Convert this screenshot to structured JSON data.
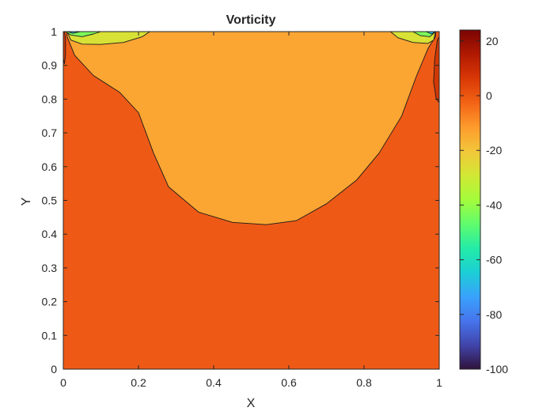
{
  "chart_data": {
    "type": "contour",
    "title": "Vorticity",
    "xlabel": "X",
    "ylabel": "Y",
    "xlim": [
      0,
      1
    ],
    "ylim": [
      0,
      1
    ],
    "x_ticks": [
      "0",
      "0.2",
      "0.4",
      "0.6",
      "0.8",
      "1"
    ],
    "x_tick_values": [
      0,
      0.2,
      0.4,
      0.6,
      0.8,
      1
    ],
    "y_ticks": [
      "0",
      "0.1",
      "0.2",
      "0.3",
      "0.4",
      "0.5",
      "0.6",
      "0.7",
      "0.8",
      "0.9",
      "1"
    ],
    "y_tick_values": [
      0,
      0.1,
      0.2,
      0.3,
      0.4,
      0.5,
      0.6,
      0.7,
      0.8,
      0.9,
      1
    ],
    "colorbar": {
      "range": [
        -100,
        24
      ],
      "ticks": [
        "20",
        "0",
        "-20",
        "-40",
        "-60",
        "-80",
        "-100"
      ],
      "tick_values": [
        20,
        0,
        -20,
        -40,
        -60,
        -80,
        -100
      ],
      "colormap": "turbo"
    },
    "grid": false,
    "regions": [
      {
        "level_range": [
          -10,
          0
        ],
        "color": "#ee5a16",
        "description_level": "background",
        "boundary": [
          [
            0,
            0
          ],
          [
            1,
            0
          ],
          [
            1,
            1
          ],
          [
            0,
            1
          ]
        ]
      },
      {
        "level_range": [
          -20,
          -10
        ],
        "color": "#fba532",
        "boundary": [
          [
            0.01,
            0.985
          ],
          [
            0.03,
            0.93
          ],
          [
            0.08,
            0.87
          ],
          [
            0.15,
            0.82
          ],
          [
            0.2,
            0.76
          ],
          [
            0.24,
            0.64
          ],
          [
            0.28,
            0.54
          ],
          [
            0.36,
            0.465
          ],
          [
            0.45,
            0.435
          ],
          [
            0.54,
            0.428
          ],
          [
            0.62,
            0.44
          ],
          [
            0.7,
            0.49
          ],
          [
            0.78,
            0.56
          ],
          [
            0.84,
            0.64
          ],
          [
            0.9,
            0.75
          ],
          [
            0.94,
            0.87
          ],
          [
            0.97,
            0.95
          ],
          [
            0.99,
            0.985
          ],
          [
            0.99,
            1
          ],
          [
            0.01,
            1
          ]
        ]
      },
      {
        "level_range": [
          -30,
          -20
        ],
        "color": "#d8e135",
        "boundary": [
          [
            0.01,
            1
          ],
          [
            0.02,
            0.975
          ],
          [
            0.05,
            0.963
          ],
          [
            0.1,
            0.962
          ],
          [
            0.16,
            0.968
          ],
          [
            0.21,
            0.985
          ],
          [
            0.23,
            1
          ]
        ]
      },
      {
        "level_range": [
          -30,
          -20
        ],
        "color": "#d8e135",
        "boundary": [
          [
            0.87,
            1
          ],
          [
            0.89,
            0.982
          ],
          [
            0.93,
            0.968
          ],
          [
            0.97,
            0.965
          ],
          [
            0.985,
            0.975
          ],
          [
            0.99,
            1
          ]
        ]
      },
      {
        "level_range": [
          -50,
          -30
        ],
        "color": "#7cf85b",
        "boundary": [
          [
            0.005,
            1
          ],
          [
            0.02,
            0.99
          ],
          [
            0.05,
            0.985
          ],
          [
            0.08,
            0.993
          ],
          [
            0.1,
            1
          ]
        ]
      },
      {
        "level_range": [
          -50,
          -30
        ],
        "color": "#7cf85b",
        "boundary": [
          [
            0.93,
            1
          ],
          [
            0.95,
            0.988
          ],
          [
            0.975,
            0.985
          ],
          [
            0.99,
            1
          ]
        ]
      },
      {
        "level_range": [
          -70,
          -50
        ],
        "color": "#28bbec",
        "boundary": [
          [
            0.01,
            1
          ],
          [
            0.025,
            0.995
          ],
          [
            0.045,
            1
          ]
        ]
      },
      {
        "level_range": [
          -70,
          -50
        ],
        "color": "#28bbec",
        "boundary": [
          [
            0.965,
            1
          ],
          [
            0.98,
            0.993
          ],
          [
            0.99,
            1
          ]
        ]
      },
      {
        "level_range": [
          0,
          10
        ],
        "color": "#d13805",
        "boundary": [
          [
            0,
            0.92
          ],
          [
            0.003,
            0.905
          ],
          [
            0.006,
            0.93
          ],
          [
            0.006,
            0.98
          ],
          [
            0.003,
            1
          ],
          [
            0,
            1
          ]
        ]
      },
      {
        "level_range": [
          0,
          10
        ],
        "color": "#d13805",
        "boundary": [
          [
            1,
            0.79
          ],
          [
            0.992,
            0.8
          ],
          [
            0.985,
            0.85
          ],
          [
            0.988,
            0.92
          ],
          [
            0.995,
            0.975
          ],
          [
            1,
            0.985
          ]
        ]
      }
    ]
  }
}
